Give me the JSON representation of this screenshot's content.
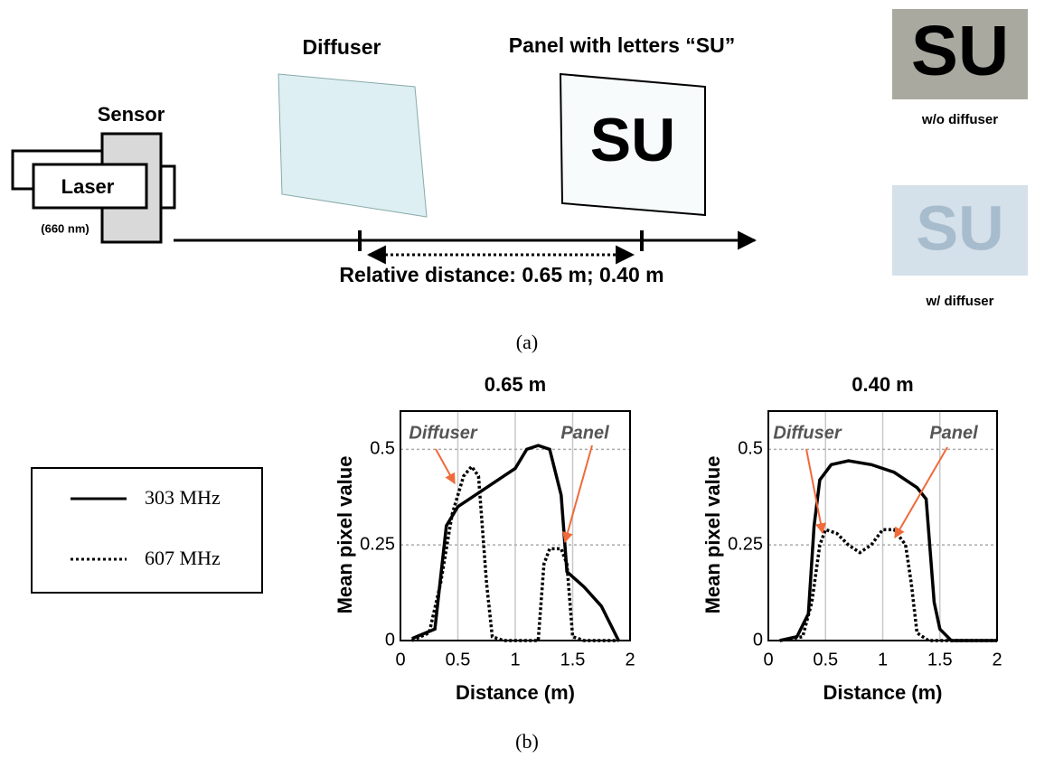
{
  "diagram": {
    "diffuser": "Diffuser",
    "panel": "Panel with letters “SU”",
    "panel_letters": "SU",
    "sensor": "Sensor",
    "laser": "Laser",
    "wavelength": "(660 nm)",
    "distance": "Relative distance: 0.65 m; 0.40 m",
    "photo_without": {
      "letters": "SU",
      "caption": "w/o diffuser"
    },
    "photo_with": {
      "letters": "SU",
      "caption": "w/ diffuser"
    }
  },
  "captions": [
    "(a)",
    "(b)"
  ],
  "chart_data": [
    {
      "type": "line",
      "title": "0.65 m",
      "xlabel": "Distance (m)",
      "ylabel": "Mean pixel value",
      "xlim": [
        0,
        2
      ],
      "xticks": [
        0,
        0.5,
        1,
        1.5,
        2
      ],
      "ylim": [
        0,
        0.6
      ],
      "yticks": [
        0,
        0.25,
        0.5
      ],
      "grid": true,
      "annotations": [
        "Diffuser",
        "Panel"
      ],
      "series": [
        {
          "name": "303 MHz",
          "color": "#000000",
          "dash": "solid",
          "x": [
            0.1,
            0.3,
            0.4,
            0.5,
            0.7,
            0.9,
            1.0,
            1.1,
            1.2,
            1.3,
            1.4,
            1.45,
            1.6,
            1.75,
            1.9
          ],
          "values": [
            0.005,
            0.03,
            0.3,
            0.35,
            0.39,
            0.43,
            0.45,
            0.5,
            0.51,
            0.5,
            0.38,
            0.18,
            0.14,
            0.09,
            0.0
          ]
        },
        {
          "name": "607 MHz",
          "color": "#000000",
          "dash": "dotted",
          "x": [
            0.1,
            0.25,
            0.35,
            0.45,
            0.55,
            0.62,
            0.68,
            0.75,
            0.8,
            0.9,
            1.2,
            1.25,
            1.3,
            1.4,
            1.45,
            1.5,
            1.6,
            1.9
          ],
          "values": [
            0,
            0.02,
            0.15,
            0.33,
            0.43,
            0.455,
            0.43,
            0.15,
            0.01,
            0,
            0,
            0.2,
            0.24,
            0.24,
            0.2,
            0.01,
            0,
            0
          ]
        }
      ]
    },
    {
      "type": "line",
      "title": "0.40 m",
      "xlabel": "Distance (m)",
      "ylabel": "Mean pixel value",
      "xlim": [
        0,
        2
      ],
      "xticks": [
        0,
        0.5,
        1,
        1.5,
        2
      ],
      "ylim": [
        0,
        0.6
      ],
      "yticks": [
        0,
        0.25,
        0.5
      ],
      "grid": true,
      "annotations": [
        "Diffuser",
        "Panel"
      ],
      "series": [
        {
          "name": "303 MHz",
          "color": "#000000",
          "dash": "solid",
          "x": [
            0.1,
            0.25,
            0.35,
            0.4,
            0.45,
            0.55,
            0.7,
            0.9,
            1.1,
            1.3,
            1.38,
            1.45,
            1.5,
            1.6,
            2.0
          ],
          "values": [
            0,
            0.01,
            0.07,
            0.3,
            0.42,
            0.46,
            0.47,
            0.46,
            0.44,
            0.4,
            0.37,
            0.1,
            0.03,
            0,
            0
          ]
        },
        {
          "name": "607 MHz",
          "color": "#000000",
          "dash": "dotted",
          "x": [
            0.1,
            0.3,
            0.38,
            0.45,
            0.5,
            0.6,
            0.7,
            0.8,
            0.9,
            1.0,
            1.1,
            1.2,
            1.25,
            1.3,
            1.4,
            2.0
          ],
          "values": [
            0,
            0.01,
            0.1,
            0.25,
            0.29,
            0.28,
            0.25,
            0.23,
            0.25,
            0.29,
            0.29,
            0.25,
            0.15,
            0.02,
            0,
            0
          ]
        }
      ]
    }
  ]
}
